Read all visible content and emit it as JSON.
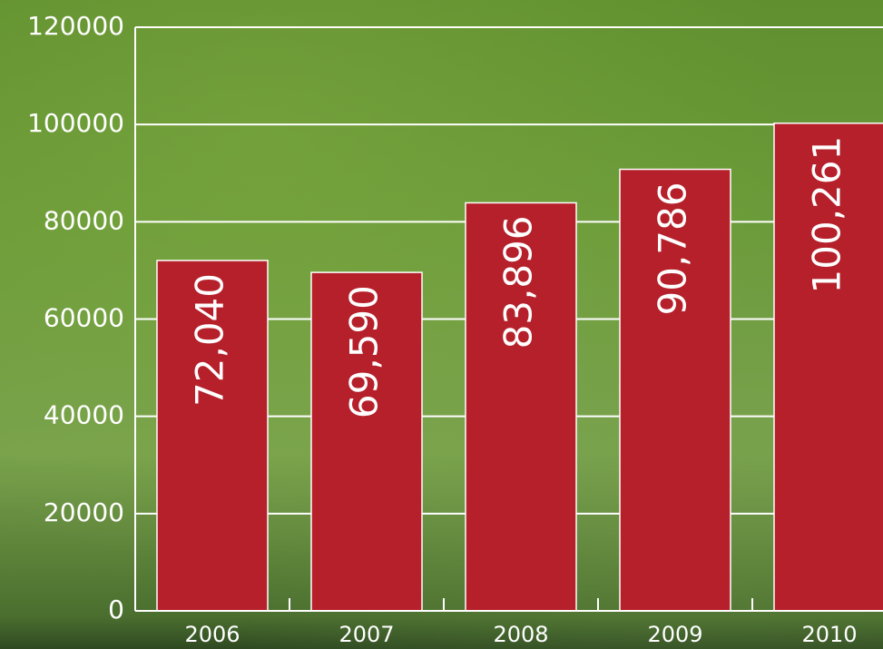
{
  "chart_data": {
    "type": "bar",
    "categories": [
      "2006",
      "2007",
      "2008",
      "2009",
      "2010"
    ],
    "values": [
      72040,
      69590,
      83896,
      90786,
      100261
    ],
    "value_labels": [
      "72,040",
      "69,590",
      "83,896",
      "90,786",
      "100,261"
    ],
    "color": "#b5202a",
    "ylim": [
      0,
      120000
    ],
    "yticks": [
      0,
      20000,
      40000,
      60000,
      80000,
      100000,
      120000
    ],
    "grid": true
  }
}
